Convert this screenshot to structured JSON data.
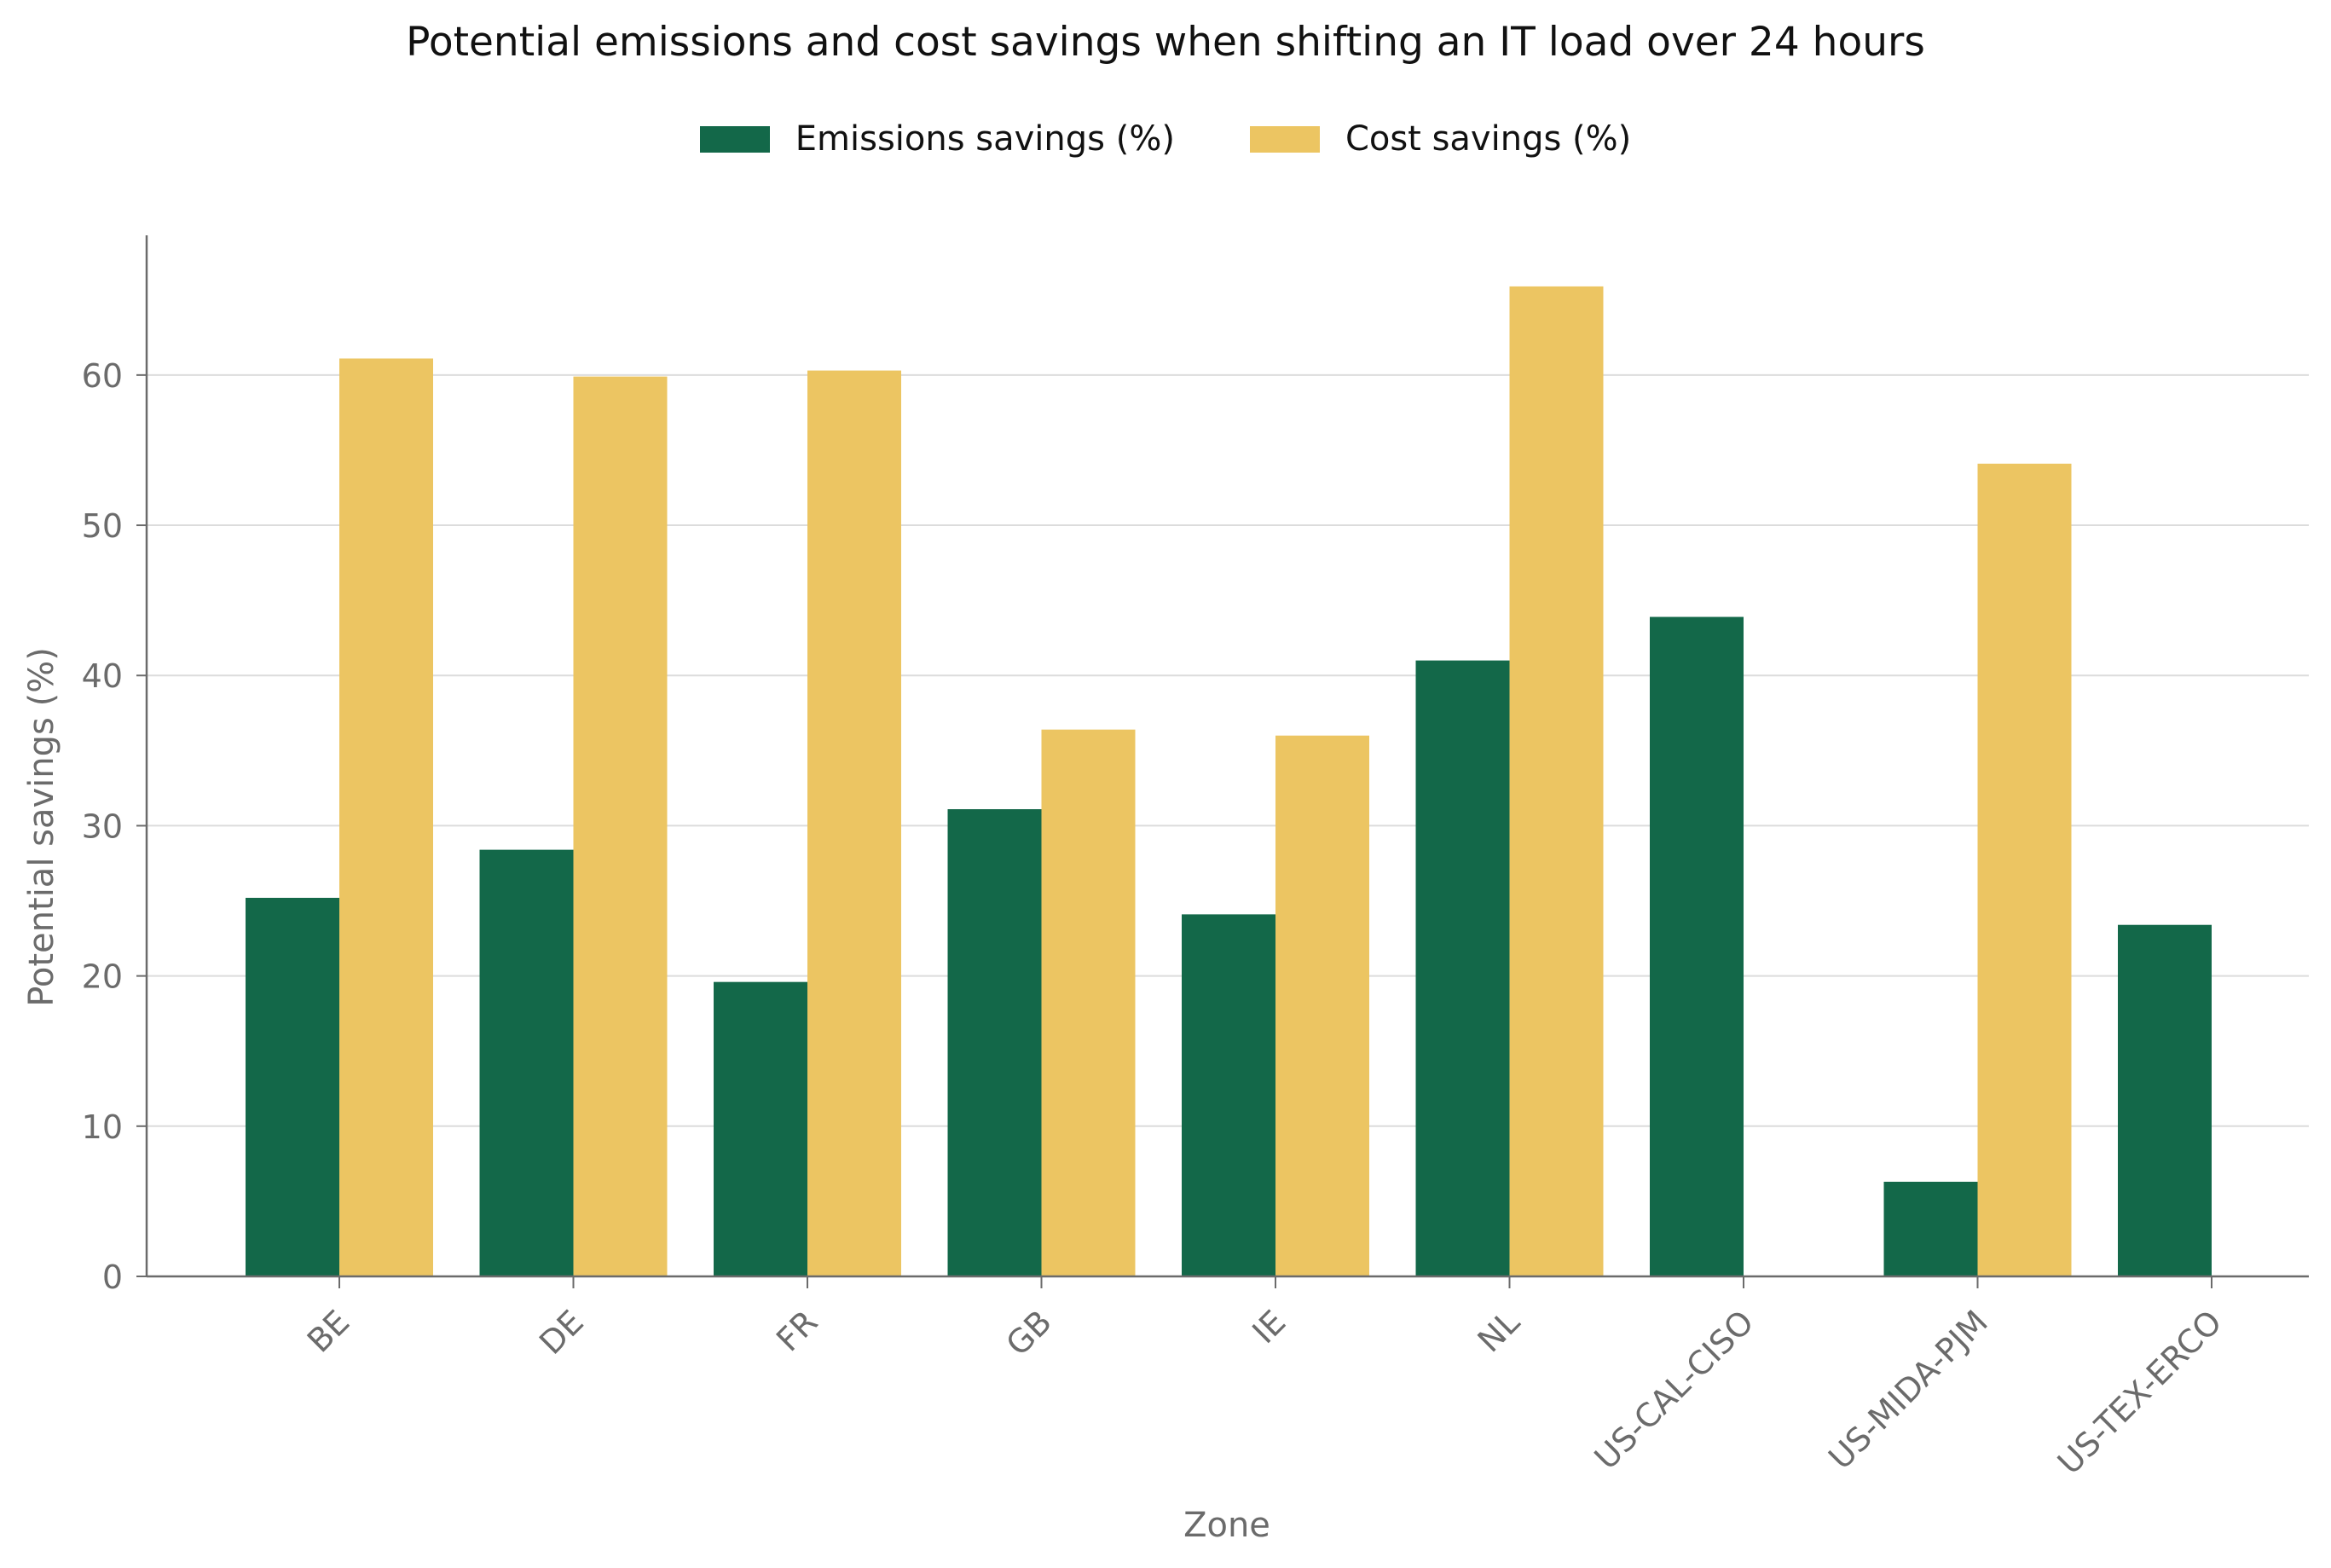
{
  "chart_data": {
    "type": "bar",
    "title": "Potential emissions and cost savings when shifting an IT load over 24 hours",
    "xlabel": "Zone",
    "ylabel": "Potential savings (%)",
    "categories": [
      "BE",
      "DE",
      "FR",
      "GB",
      "IE",
      "NL",
      "US-CAL-CISO",
      "US-MIDA-PJM",
      "US-TEX-ERCO"
    ],
    "series": [
      {
        "name": "Emissions savings (%)",
        "color": "#136849",
        "values": [
          25.2,
          28.4,
          19.6,
          31.1,
          24.1,
          41.0,
          43.9,
          6.3,
          23.4
        ]
      },
      {
        "name": "Cost savings (%)",
        "color": "#ecc562",
        "values": [
          61.1,
          59.9,
          60.3,
          36.4,
          36.0,
          65.9,
          null,
          54.1,
          null
        ]
      }
    ],
    "ylim": [
      0,
      69.3
    ],
    "yticks": [
      0,
      10,
      20,
      30,
      40,
      50,
      60
    ],
    "grid": "horizontal",
    "legend_position": "top-center"
  }
}
